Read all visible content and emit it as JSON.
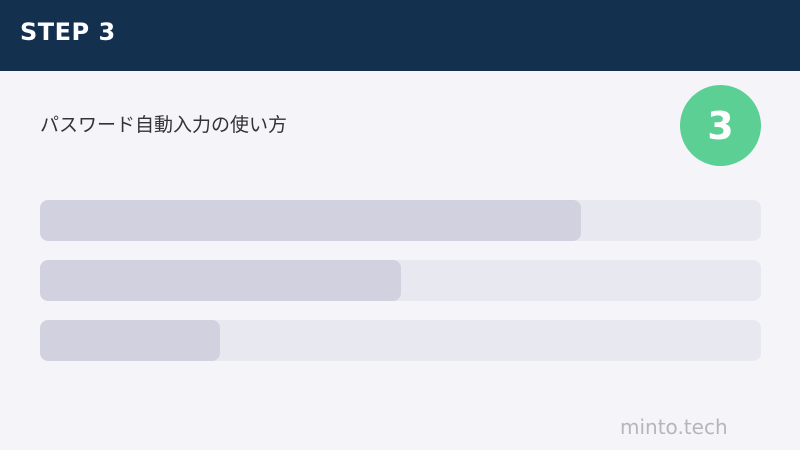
{
  "header": {
    "title": "STEP 3"
  },
  "content": {
    "subtitle": "パスワード自動入力の使い方",
    "step_number": "3"
  },
  "progress_bars": [
    {
      "fill_percent": 75
    },
    {
      "fill_percent": 50
    },
    {
      "fill_percent": 25
    }
  ],
  "footer": {
    "watermark": "minto.tech"
  },
  "colors": {
    "header": "#14304f",
    "badge": "#5ccf94",
    "track": "#e8e8f0",
    "fill": "#d2d1e0",
    "background": "#f5f5f9"
  }
}
